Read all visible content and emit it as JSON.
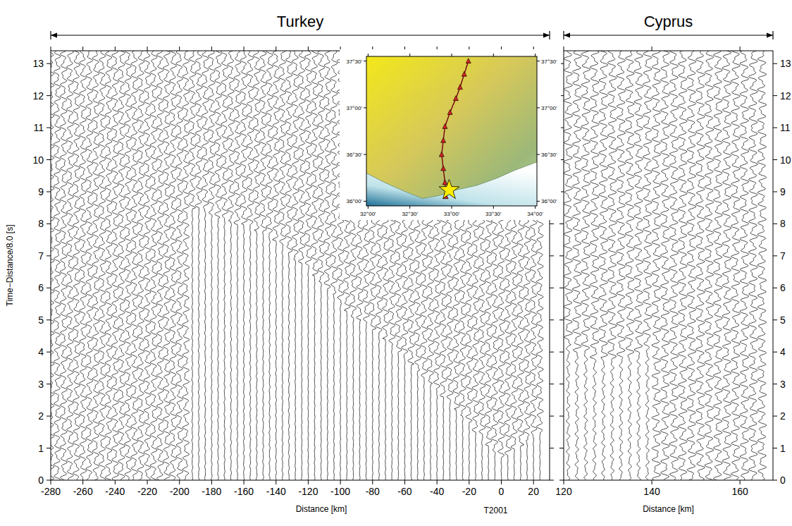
{
  "chart_data": [
    {
      "type": "wiggle",
      "title": "Turkey",
      "x_label": "Distance [km]",
      "y_label": "Time−Distance/8.0 [s]",
      "xlim": [
        -280,
        30
      ],
      "ylim": [
        0,
        13.4
      ],
      "xticks": [
        -280,
        -260,
        -240,
        -220,
        -200,
        -180,
        -160,
        -140,
        -120,
        -100,
        -80,
        -60,
        -40,
        -20,
        0,
        20
      ],
      "yticks": [
        0,
        1,
        2,
        3,
        4,
        5,
        6,
        7,
        8,
        9,
        10,
        11,
        12,
        13
      ],
      "annotations": [
        {
          "text": "T2001",
          "x": 0
        }
      ],
      "series": [
        {
          "x": [
            -280,
            -276,
            -272,
            -268,
            -264,
            -260,
            -256,
            -252,
            -248,
            -244,
            -240,
            -236,
            -232,
            -228,
            -224,
            -220,
            -216,
            -212,
            -208,
            -204,
            -200,
            -196,
            -192,
            -188,
            -184,
            -180,
            -176,
            -172,
            -168,
            -164,
            -160,
            -156,
            -152,
            -148,
            -144,
            -140,
            -136,
            -132,
            -128,
            -124,
            -120,
            -116,
            -112,
            -108,
            -104,
            -100,
            -96,
            -92,
            -88,
            -84,
            -80,
            -76,
            -72,
            -68,
            -64,
            -60,
            -56,
            -52,
            -48,
            -44,
            -40,
            -36,
            -32,
            -28,
            -24,
            -20,
            -16,
            -12,
            -8,
            -4,
            0,
            4,
            8,
            12,
            16,
            20,
            24
          ],
          "values": [
            0,
            0,
            0,
            0,
            0,
            0,
            0,
            0,
            0,
            0,
            0,
            0,
            0,
            0,
            0,
            0,
            0,
            0,
            0,
            0,
            0,
            0,
            8.5,
            8.5,
            8.4,
            8.3,
            8.2,
            8.2,
            8.1,
            8.0,
            8.0,
            7.9,
            7.8,
            7.8,
            7.6,
            7.5,
            7.3,
            7.1,
            6.9,
            6.8,
            6.6,
            6.4,
            6.2,
            6.0,
            5.8,
            5.5,
            5.3,
            5.1,
            5.0,
            4.9,
            4.7,
            4.6,
            4.4,
            4.2,
            4.0,
            3.8,
            3.6,
            3.4,
            3.2,
            3.0,
            2.8,
            2.6,
            2.4,
            2.2,
            2.0,
            1.8,
            1.5,
            1.3,
            1.1,
            0.9,
            0.7,
            0.8,
            1.0,
            1.1,
            1.2,
            1.3,
            1.4
          ],
          "noise": [
            1,
            1,
            1,
            1,
            1,
            1,
            1,
            1,
            1,
            1,
            1,
            1,
            1,
            1,
            1,
            1,
            1,
            1,
            1,
            1,
            1,
            1,
            0.15,
            0.15,
            0.15,
            0.15,
            0.15,
            0.15,
            0.15,
            0.15,
            0.15,
            0.15,
            0.15,
            0.15,
            0.15,
            0.15,
            0.15,
            0.15,
            0.1,
            0.1,
            0.1,
            0.1,
            0.1,
            0.1,
            0.1,
            0.1,
            0.1,
            0.1,
            0.1,
            0.1,
            0.1,
            0.1,
            0.1,
            0.1,
            0.1,
            0.1,
            0.1,
            0.1,
            0.1,
            0.1,
            0.1,
            0.1,
            0.1,
            0.1,
            0.1,
            0.1,
            0.1,
            0.1,
            0.1,
            0.1,
            0.1,
            0.1,
            0.1,
            0.1,
            0.1,
            0.1,
            0.1
          ],
          "color": "#000000"
        }
      ]
    },
    {
      "type": "wiggle",
      "title": "Cyprus",
      "x_label": "Distance [km]",
      "xlim": [
        120,
        167.5
      ],
      "ylim": [
        0,
        13.4
      ],
      "xticks": [
        120,
        140,
        160
      ],
      "yticks": [
        0,
        1,
        2,
        3,
        4,
        5,
        6,
        7,
        8,
        9,
        10,
        11,
        12,
        13
      ],
      "series": [
        {
          "x": [
            121,
            123,
            125,
            127,
            129,
            131,
            133,
            135,
            137,
            139,
            141,
            143,
            145,
            147,
            149,
            151,
            153,
            155,
            157,
            159,
            161,
            163,
            165
          ],
          "values": [
            4.2,
            4.0,
            3.9,
            3.8,
            3.8,
            3.8,
            3.7,
            3.8,
            4.0,
            4.2,
            0,
            0,
            0,
            0,
            0,
            0,
            0,
            0,
            0,
            0,
            0,
            0,
            0
          ],
          "noise": [
            0.4,
            0.4,
            0.4,
            0.4,
            0.4,
            0.4,
            0.4,
            0.4,
            0.4,
            0.4,
            1,
            1,
            1,
            1,
            1,
            1,
            1,
            1,
            1,
            1,
            1,
            1,
            1
          ],
          "color": "#000000"
        }
      ]
    },
    {
      "type": "map",
      "xlim": [
        31.98,
        34.02
      ],
      "ylim": [
        35.95,
        37.55
      ],
      "xticks": [
        {
          "value": 32,
          "label": "32°00'"
        },
        {
          "value": 32.5,
          "label": "32°30'"
        },
        {
          "value": 33,
          "label": "33°00'"
        },
        {
          "value": 33.5,
          "label": "33°30'"
        },
        {
          "value": 34,
          "label": "34°00'"
        }
      ],
      "yticks": [
        {
          "value": 36,
          "label": "36°00'"
        },
        {
          "value": 36.5,
          "label": "36°30'"
        },
        {
          "value": 37,
          "label": "37°00'"
        },
        {
          "value": 37.5,
          "label": "37°30'"
        }
      ],
      "coastline": {
        "x": [
          31.98,
          32.2,
          32.45,
          32.65,
          32.85,
          33.05,
          33.3,
          33.55,
          33.75,
          33.9,
          34.02
        ],
        "y": [
          36.3,
          36.2,
          36.1,
          36.03,
          36.06,
          36.12,
          36.17,
          36.25,
          36.33,
          36.38,
          36.42
        ]
      },
      "series": [
        {
          "x": [
            32.93,
            32.92,
            32.9,
            32.88,
            32.9,
            32.92,
            32.98,
            33.05,
            33.1,
            33.15,
            33.2
          ],
          "values": [
            36.05,
            36.2,
            36.35,
            36.5,
            36.65,
            36.8,
            36.95,
            37.1,
            37.22,
            37.36,
            37.5
          ],
          "marker": "triangle",
          "color": "#d42020"
        },
        {
          "x": [
            32.97
          ],
          "values": [
            36.12
          ],
          "marker": "star",
          "color": "#ffee00"
        }
      ]
    }
  ]
}
